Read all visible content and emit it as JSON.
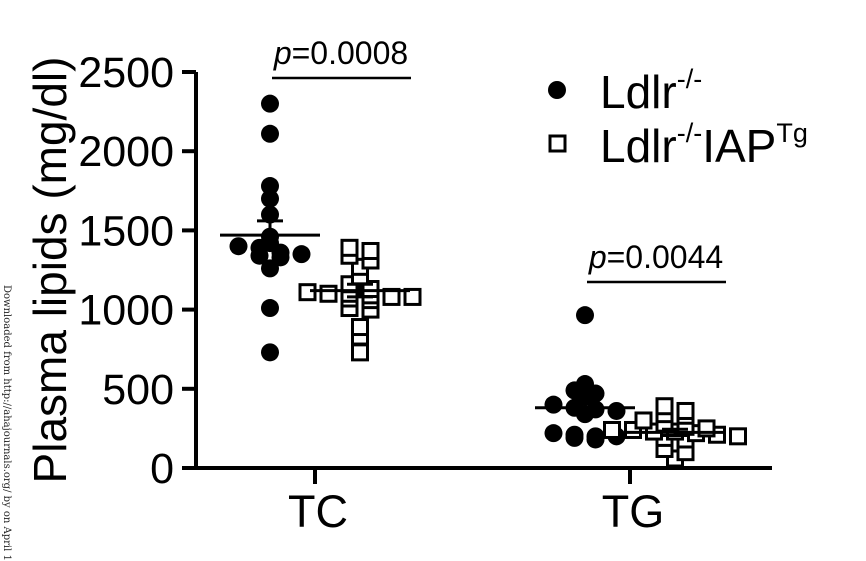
{
  "chart_data": {
    "type": "scatter",
    "ylabel": "Plasma lipids (mg/dl)",
    "ylim": [
      0,
      2500
    ],
    "yticks": [
      0,
      500,
      1000,
      1500,
      2000,
      2500
    ],
    "categories": [
      "TC",
      "TG"
    ],
    "legend_position": "top-right",
    "grid": false,
    "series": [
      {
        "name_main": "Ldlr",
        "name_sup": "-/-",
        "marker": "filled-circle",
        "groups": [
          {
            "category": "TC",
            "mean": 1470,
            "sem": 90,
            "values": [
              2300,
              2110,
              1780,
              1700,
              1600,
              1460,
              1420,
              1400,
              1390,
              1360,
              1350,
              1340,
              1330,
              1260,
              1010,
              730
            ]
          },
          {
            "category": "TG",
            "mean": 380,
            "sem": 45,
            "values": [
              965,
              530,
              490,
              470,
              450,
              400,
              380,
              370,
              360,
              340,
              220,
              210,
              200,
              200,
              190,
              180
            ]
          }
        ]
      },
      {
        "name_main": "Ldlr",
        "name_sup": "-/-",
        "name_main2": "IAP",
        "name_sup2": "Tg",
        "marker": "open-square",
        "groups": [
          {
            "category": "TC",
            "mean": 1120,
            "sem": 40,
            "values": [
              1390,
              1370,
              1340,
              1310,
              1270,
              1210,
              1160,
              1130,
              1110,
              1100,
              1100,
              1090,
              1080,
              1080,
              1070,
              1060,
              1010,
              1000,
              890,
              830,
              730
            ]
          },
          {
            "category": "TG",
            "mean": 225,
            "sem": 20,
            "values": [
              390,
              360,
              340,
              330,
              300,
              280,
              260,
              250,
              240,
              240,
              230,
              230,
              220,
              210,
              200,
              190,
              180,
              120,
              100,
              60
            ]
          }
        ]
      }
    ],
    "annotations": [
      {
        "category": "TC",
        "p_label": "p",
        "p_value": "=0.0008"
      },
      {
        "category": "TG",
        "p_label": "p",
        "p_value": "=0.0044"
      }
    ]
  },
  "watermark": "Downloaded from http://ahajournals.org/ by on April 1"
}
